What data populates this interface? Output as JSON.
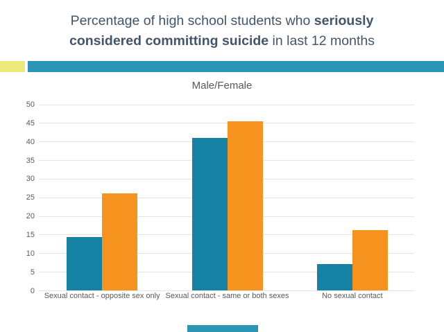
{
  "slide": {
    "title": {
      "line1_regular": "Percentage of high school students who ",
      "line1_bold": "seriously",
      "line2_bold": "considered committing suicide",
      "line2_regular": " in last 12 months"
    },
    "colors": {
      "title_text": "#44546A",
      "accent_yellow": "#ECE97B",
      "accent_teal": "#2B94B5",
      "male_bar": "#1581A3",
      "female_bar": "#F6921E",
      "grid_line": "#E4E4E4",
      "axis_text": "#595959"
    }
  },
  "chart_data": {
    "type": "bar",
    "title": "Male/Female",
    "categories": [
      "Sexual contact - opposite sex only",
      "Sexual contact - same or both sexes",
      "No sexual contact"
    ],
    "series": [
      {
        "name": "Male",
        "values": [
          14.5,
          41.0,
          7.2
        ]
      },
      {
        "name": "Female",
        "values": [
          26.2,
          45.6,
          16.3
        ]
      }
    ],
    "ylim": [
      0,
      50
    ],
    "ytick_step": 5,
    "grid": true,
    "legend": "none"
  }
}
